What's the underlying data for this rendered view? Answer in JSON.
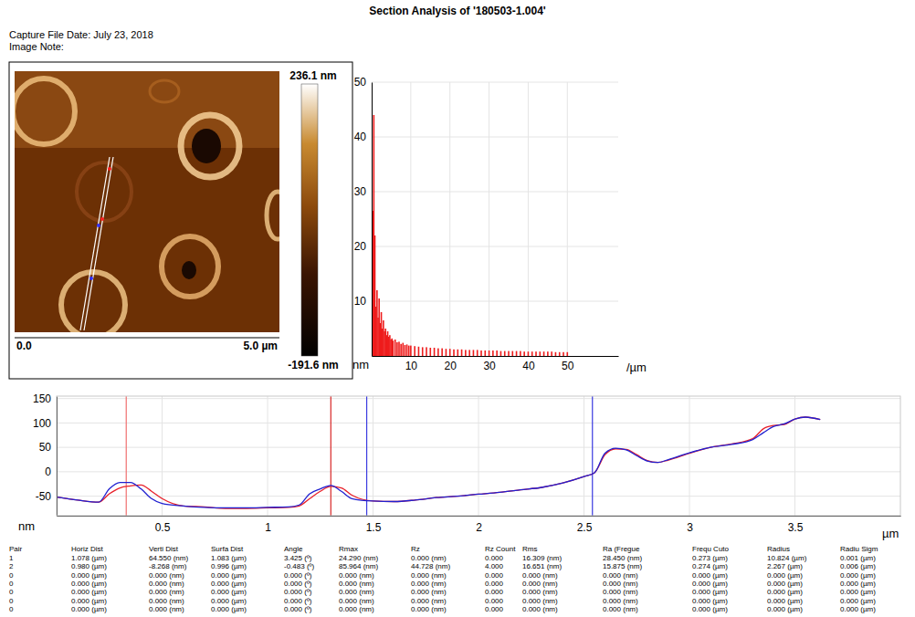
{
  "header": {
    "title": "Section Analysis of '180503-1.004'",
    "capture_date": "Capture File Date: July 23, 2018",
    "image_note": "Image Note:"
  },
  "image": {
    "colorbar": {
      "range": [
        -191.6,
        236.1
      ],
      "ticks": [
        {
          "value": 236.1,
          "label": "236.1 nm"
        },
        {
          "value": -191.6,
          "label": "-191.6 nm"
        }
      ]
    },
    "scale": {
      "range": [
        0,
        5.0
      ],
      "ticks": [
        {
          "value": 0,
          "label": "0.0"
        },
        {
          "value": 5.0,
          "label": "5.0 µm"
        }
      ]
    }
  },
  "chart_data": [
    {
      "type": "bar",
      "x_label": "/µm",
      "y_label": "nm",
      "x": [
        0.27,
        0.55,
        0.82,
        1.09,
        1.37,
        1.64,
        1.91,
        2.19,
        2.46,
        2.73,
        3.0,
        3.28,
        3.55,
        3.82,
        4.1,
        4.37,
        4.64,
        4.92,
        5.19,
        5.46,
        6,
        6.5,
        7,
        7.5,
        8,
        8.5,
        9,
        9.5,
        10,
        11,
        12,
        13,
        14,
        15,
        16,
        17,
        18,
        19,
        20,
        21,
        22,
        23,
        24,
        25,
        26,
        27,
        28,
        29,
        30,
        31,
        32,
        33,
        34,
        35,
        36,
        37,
        38,
        39,
        40,
        41,
        42,
        43,
        44,
        45,
        46,
        47,
        48,
        49,
        50
      ],
      "values": [
        26.5,
        44,
        22,
        9,
        12,
        7,
        10.5,
        6,
        8,
        5,
        6.5,
        4.5,
        5,
        3.8,
        4.5,
        3.5,
        3.8,
        3,
        3.2,
        2.8,
        3,
        2.5,
        2.6,
        2.2,
        2.4,
        2,
        2.1,
        1.9,
        1.9,
        1.8,
        1.7,
        1.6,
        1.6,
        1.5,
        1.5,
        1.4,
        1.4,
        1.3,
        1.3,
        1.2,
        1.2,
        1.2,
        1.1,
        1.1,
        1.1,
        1.1,
        1.0,
        1.0,
        1.0,
        1.0,
        1.0,
        0.9,
        0.9,
        0.9,
        0.9,
        0.9,
        0.9,
        0.8,
        0.8,
        0.8,
        0.8,
        0.8,
        0.8,
        0.8,
        0.8,
        0.7,
        0.7,
        0.7,
        0.7
      ],
      "color": "#ee1c1c",
      "xlim": [
        0,
        63
      ],
      "ylim": [
        0,
        50
      ],
      "xticks": [
        10,
        20,
        30,
        40,
        50
      ],
      "yticks": [
        10,
        20,
        30,
        40,
        50
      ],
      "grid": true
    },
    {
      "type": "line",
      "x_label": "µm",
      "y_label": "nm",
      "x": [
        0.0,
        0.1,
        0.2,
        0.25,
        0.3,
        0.35,
        0.4,
        0.45,
        0.5,
        0.6,
        0.7,
        0.8,
        0.9,
        1.0,
        1.1,
        1.15,
        1.2,
        1.25,
        1.3,
        1.35,
        1.4,
        1.5,
        1.6,
        1.7,
        1.8,
        1.9,
        2.0,
        2.1,
        2.2,
        2.3,
        2.4,
        2.5,
        2.55,
        2.6,
        2.65,
        2.7,
        2.75,
        2.8,
        2.85,
        2.9,
        3.0,
        3.1,
        3.2,
        3.3,
        3.35,
        3.4,
        3.45,
        3.5,
        3.55,
        3.62
      ],
      "series": [
        {
          "color": "#e8202a",
          "values": [
            -52,
            -58,
            -62,
            -45,
            -33,
            -29,
            -27,
            -40,
            -55,
            -70,
            -72,
            -75,
            -75,
            -74,
            -73,
            -70,
            -55,
            -40,
            -30,
            -33,
            -48,
            -60,
            -61,
            -58,
            -53,
            -50,
            -46,
            -42,
            -37,
            -32,
            -23,
            -10,
            -2,
            35,
            47,
            46,
            35,
            23,
            19,
            24,
            38,
            50,
            57,
            68,
            88,
            95,
            97,
            108,
            112,
            107
          ]
        },
        {
          "color": "#2020d0",
          "values": [
            -52,
            -58,
            -62,
            -35,
            -22,
            -22,
            -35,
            -55,
            -65,
            -70,
            -73,
            -74,
            -74,
            -73,
            -72,
            -68,
            -45,
            -35,
            -28,
            -40,
            -55,
            -60,
            -61,
            -58,
            -53,
            -50,
            -46,
            -42,
            -37,
            -32,
            -23,
            -10,
            -2,
            38,
            48,
            45,
            33,
            22,
            19,
            25,
            39,
            50,
            56,
            66,
            80,
            93,
            98,
            108,
            112,
            107
          ]
        }
      ],
      "cursors": [
        {
          "x": 0.33,
          "color": "#f07070"
        },
        {
          "x": 1.3,
          "color": "#d82828"
        },
        {
          "x": 1.47,
          "color": "#3a3ae0"
        },
        {
          "x": 2.54,
          "color": "#3a3ae0"
        }
      ],
      "xlim": [
        0,
        4.0
      ],
      "ylim": [
        -90,
        155
      ],
      "xticks": [
        0.5,
        1,
        1.5,
        2,
        2.5,
        3,
        3.5
      ],
      "yticks": [
        -50,
        0,
        50,
        100,
        150
      ],
      "grid": true
    }
  ],
  "table": {
    "columns": [
      "Pair",
      "Horiz Dist",
      "Verti Dist",
      "Surfa Dist",
      "Angle",
      "Rmax",
      "Rz",
      "Rz Count",
      "Rms",
      "Ra (Fregue",
      "Frequ Cuto",
      "Radius",
      "Radiu Sigm"
    ],
    "rows": [
      [
        "1",
        "1.078 (µm)",
        "64.550 (nm)",
        "1.083 (µm)",
        "3.425 (º)",
        "24.290 (nm)",
        "0.000 (nm)",
        "0.000",
        "16.309 (nm)",
        "28.450 (nm)",
        "0.273 (µm)",
        "10.824 (µm)",
        "0.001 (µm)"
      ],
      [
        "2",
        "0.980 (µm)",
        "-8.268 (nm)",
        "0.996 (µm)",
        "-0.483 (º)",
        "85.964 (nm)",
        "44.728 (nm)",
        "4.000",
        "16.651 (nm)",
        "15.875 (nm)",
        "0.274 (µm)",
        "2.267 (µm)",
        "0.006 (µm)"
      ],
      [
        "0",
        "0.000 (µm)",
        "0.000 (nm)",
        "0.000 (µm)",
        "0.000 (º)",
        "0.000 (nm)",
        "0.000 (nm)",
        "0.000",
        "0.000 (nm)",
        "0.000 (nm)",
        "0.000 (µm)",
        "0.000 (µm)",
        "0.000 (µm)"
      ],
      [
        "0",
        "0.000 (µm)",
        "0.000 (nm)",
        "0.000 (µm)",
        "0.000 (º)",
        "0.000 (nm)",
        "0.000 (nm)",
        "0.000",
        "0.000 (nm)",
        "0.000 (nm)",
        "0.000 (µm)",
        "0.000 (µm)",
        "0.000 (µm)"
      ],
      [
        "0",
        "0.000 (µm)",
        "0.000 (nm)",
        "0.000 (µm)",
        "0.000 (º)",
        "0.000 (nm)",
        "0.000 (nm)",
        "0.000",
        "0.000 (nm)",
        "0.000 (nm)",
        "0.000 (µm)",
        "0.000 (µm)",
        "0.000 (µm)"
      ],
      [
        "0",
        "0.000 (µm)",
        "0.000 (nm)",
        "0.000 (µm)",
        "0.000 (º)",
        "0.000 (nm)",
        "0.000 (nm)",
        "0.000",
        "0.000 (nm)",
        "0.000 (nm)",
        "0.000 (µm)",
        "0.000 (µm)",
        "0.000 (µm)"
      ],
      [
        "0",
        "0.000 (µm)",
        "0.000 (nm)",
        "0.000 (µm)",
        "0.000 (º)",
        "0.000 (nm)",
        "0.000 (nm)",
        "0.000",
        "0.000 (nm)",
        "0.000 (nm)",
        "0.000 (µm)",
        "0.000 (µm)",
        "0.000 (µm)"
      ]
    ]
  }
}
